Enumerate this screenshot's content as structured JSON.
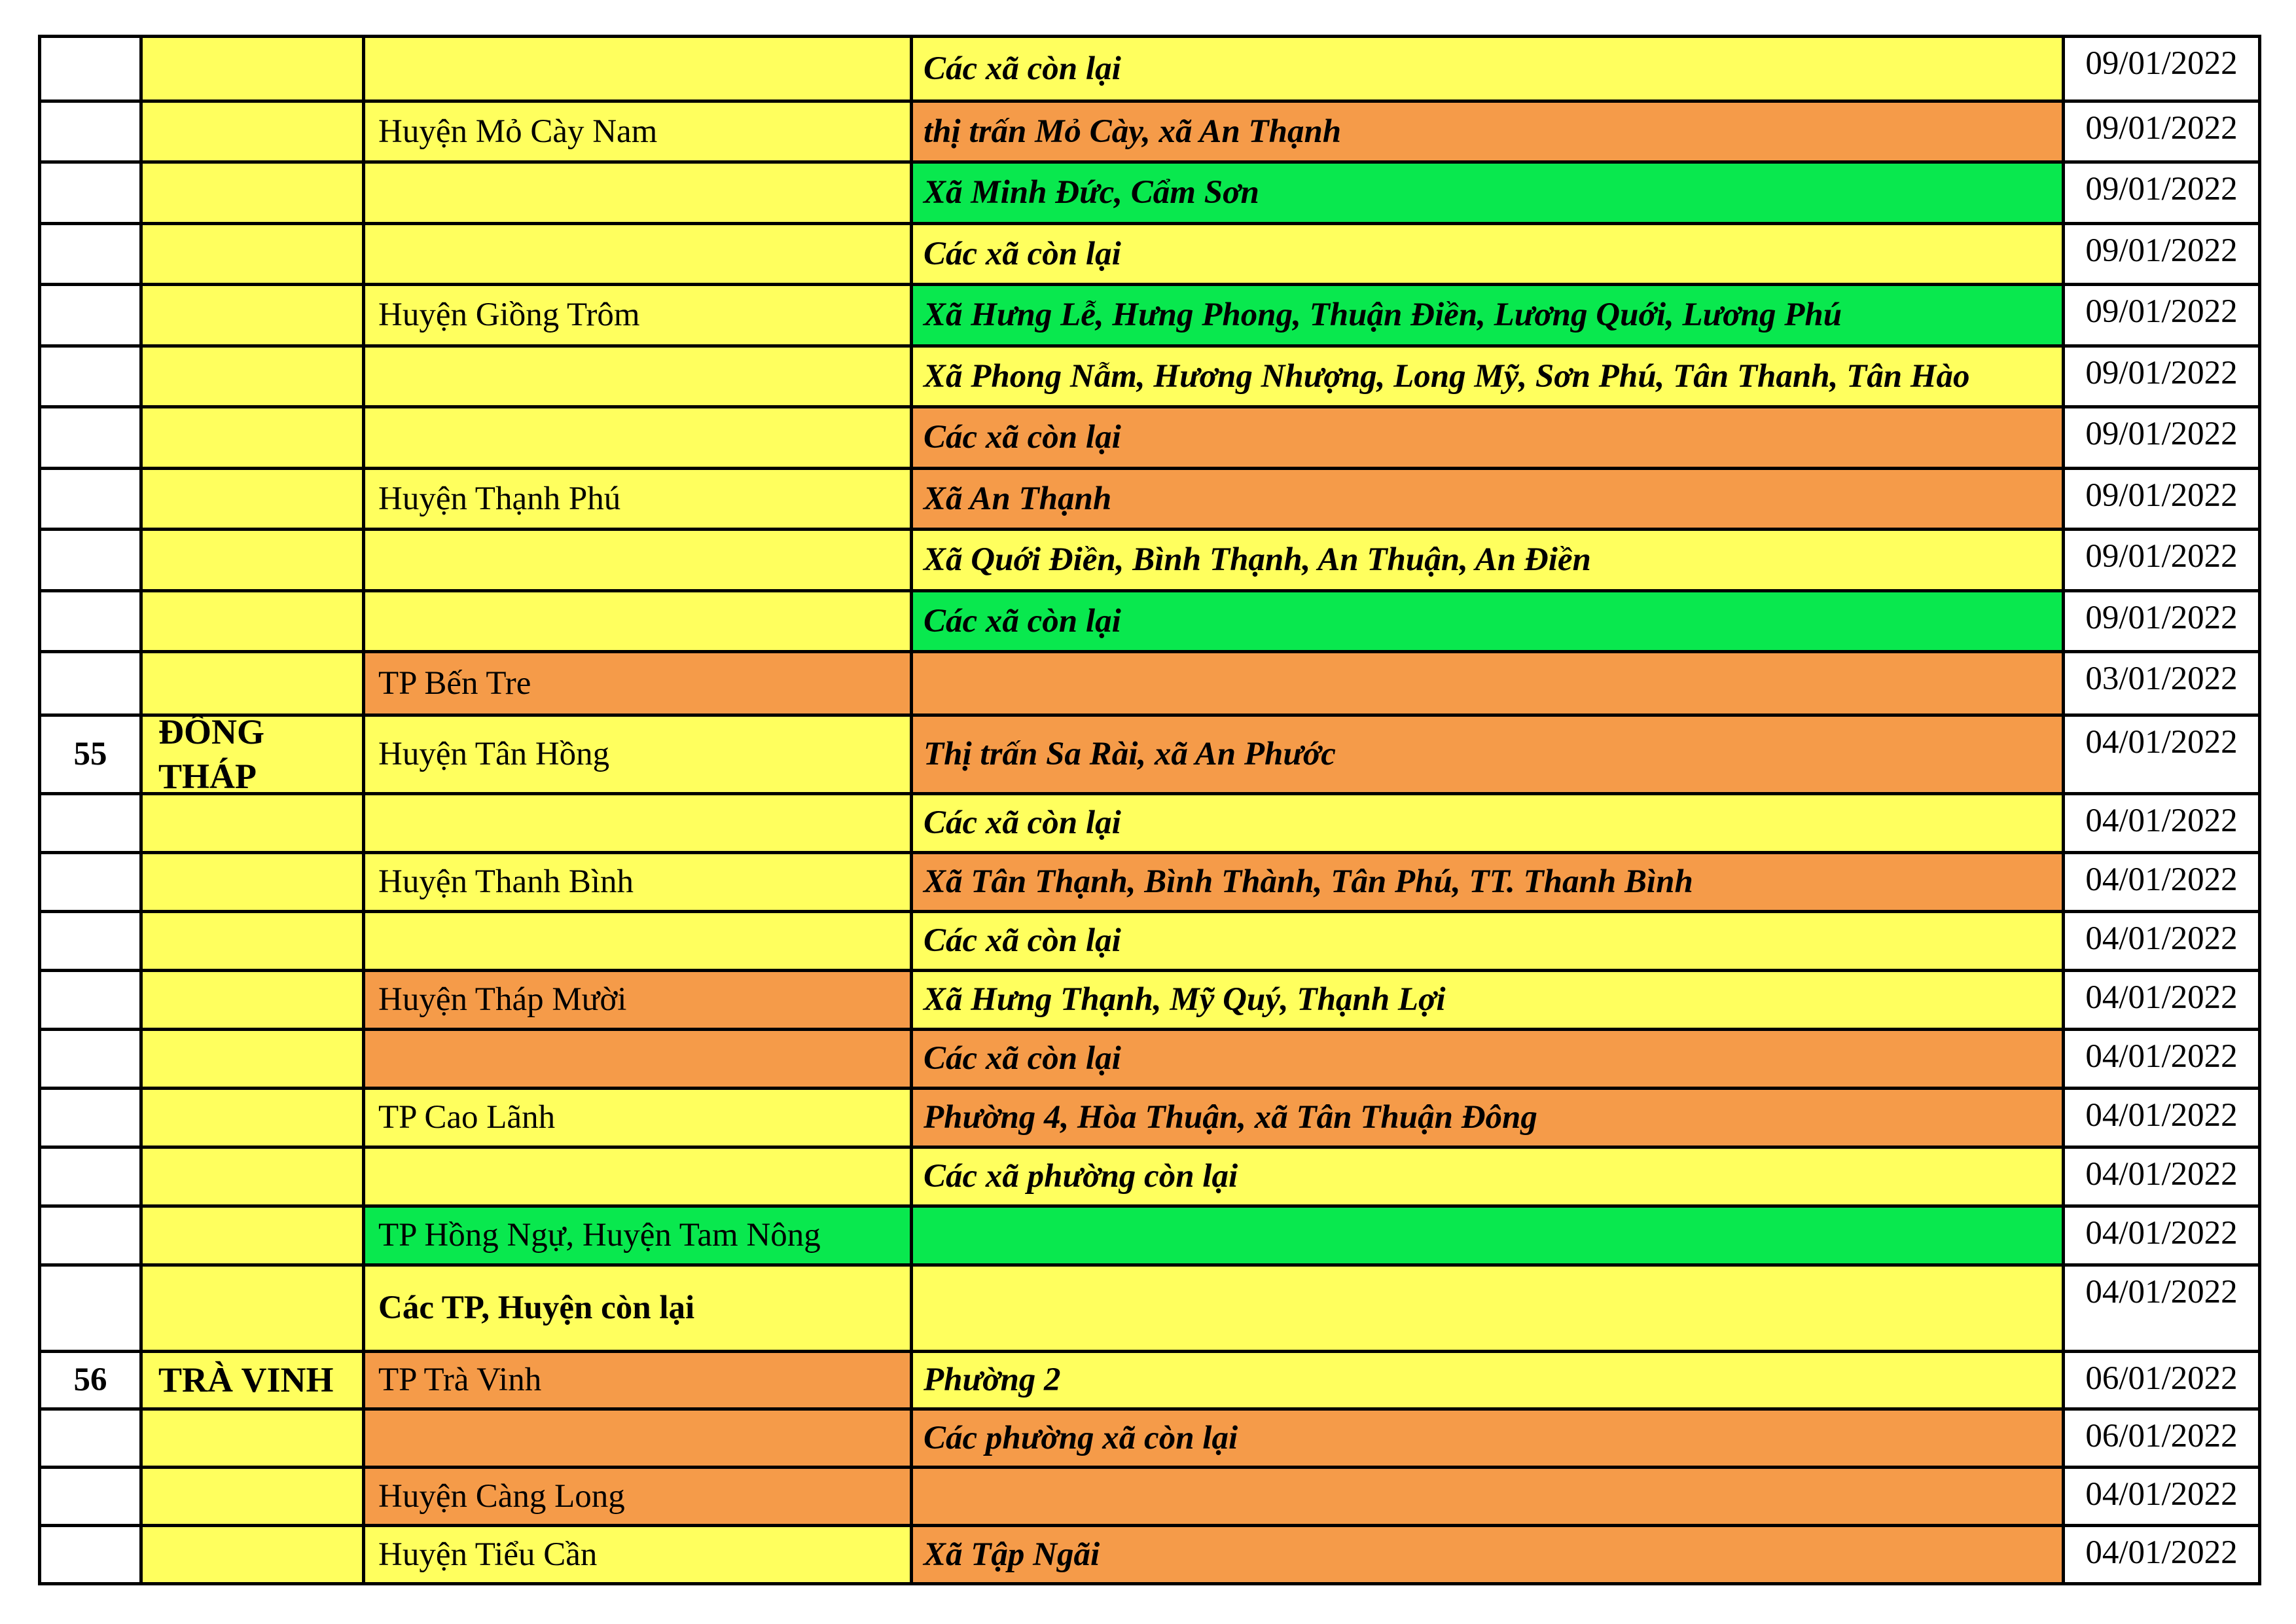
{
  "palette": {
    "yellow": "#FFFF5E",
    "orange": "#F59B49",
    "green": "#09E84E",
    "border": "#000000",
    "text": "#000000",
    "page_background": "#FFFFFF"
  },
  "table": {
    "rows": [
      {
        "num": "",
        "province": "",
        "district": "",
        "district_bg": "yellow",
        "district_bold": false,
        "commune": "Các xã còn lại",
        "commune_bg": "yellow",
        "date": "09/01/2022"
      },
      {
        "num": "",
        "province": "",
        "district": "Huyện Mỏ Cày Nam",
        "district_bg": "yellow",
        "district_bold": false,
        "commune": "thị trấn Mỏ Cày, xã An Thạnh",
        "commune_bg": "orange",
        "date": "09/01/2022"
      },
      {
        "num": "",
        "province": "",
        "district": "",
        "district_bg": "yellow",
        "district_bold": false,
        "commune": "Xã Minh Đức, Cẩm Sơn",
        "commune_bg": "green",
        "date": "09/01/2022"
      },
      {
        "num": "",
        "province": "",
        "district": "",
        "district_bg": "yellow",
        "district_bold": false,
        "commune": "Các xã còn lại",
        "commune_bg": "yellow",
        "date": "09/01/2022"
      },
      {
        "num": "",
        "province": "",
        "district": "Huyện Giồng Trôm",
        "district_bg": "yellow",
        "district_bold": false,
        "commune": "Xã Hưng Lễ, Hưng Phong, Thuận Điền, Lương Quới, Lương Phú",
        "commune_bg": "green",
        "date": "09/01/2022"
      },
      {
        "num": "",
        "province": "",
        "district": "",
        "district_bg": "yellow",
        "district_bold": false,
        "commune": "Xã Phong Nẫm, Hương Nhượng, Long Mỹ, Sơn Phú, Tân Thanh, Tân Hào",
        "commune_bg": "yellow",
        "date": "09/01/2022"
      },
      {
        "num": "",
        "province": "",
        "district": "",
        "district_bg": "yellow",
        "district_bold": false,
        "commune": "Các xã còn lại",
        "commune_bg": "orange",
        "date": "09/01/2022"
      },
      {
        "num": "",
        "province": "",
        "district": "Huyện Thạnh Phú",
        "district_bg": "yellow",
        "district_bold": false,
        "commune": "Xã An Thạnh",
        "commune_bg": "orange",
        "date": "09/01/2022"
      },
      {
        "num": "",
        "province": "",
        "district": "",
        "district_bg": "yellow",
        "district_bold": false,
        "commune": "Xã Quới Điền, Bình Thạnh, An Thuận, An Điền",
        "commune_bg": "yellow",
        "date": "09/01/2022"
      },
      {
        "num": "",
        "province": "",
        "district": "",
        "district_bg": "yellow",
        "district_bold": false,
        "commune": "Các xã còn lại",
        "commune_bg": "green",
        "date": "09/01/2022"
      },
      {
        "num": "",
        "province": "",
        "district": "TP Bến Tre",
        "district_bg": "orange",
        "district_bold": false,
        "commune": "",
        "commune_bg": "orange",
        "date": "03/01/2022"
      },
      {
        "num": "55",
        "province": "ĐỒNG THÁP",
        "district": "Huyện Tân Hồng",
        "district_bg": "yellow",
        "district_bold": false,
        "commune": "Thị trấn Sa Rài, xã An Phước",
        "commune_bg": "orange",
        "date": "04/01/2022"
      },
      {
        "num": "",
        "province": "",
        "district": "",
        "district_bg": "yellow",
        "district_bold": false,
        "commune": "Các xã còn lại",
        "commune_bg": "yellow",
        "date": "04/01/2022"
      },
      {
        "num": "",
        "province": "",
        "district": "Huyện Thanh Bình",
        "district_bg": "yellow",
        "district_bold": false,
        "commune": "Xã Tân Thạnh, Bình Thành, Tân Phú, TT. Thanh Bình",
        "commune_bg": "orange",
        "date": "04/01/2022"
      },
      {
        "num": "",
        "province": "",
        "district": "",
        "district_bg": "yellow",
        "district_bold": false,
        "commune": "Các xã còn lại",
        "commune_bg": "yellow",
        "date": "04/01/2022"
      },
      {
        "num": "",
        "province": "",
        "district": "Huyện Tháp Mười",
        "district_bg": "orange",
        "district_bold": false,
        "commune": "Xã Hưng Thạnh, Mỹ Quý, Thạnh Lợi",
        "commune_bg": "yellow",
        "date": "04/01/2022"
      },
      {
        "num": "",
        "province": "",
        "district": "",
        "district_bg": "orange",
        "district_bold": false,
        "commune": "Các xã còn lại",
        "commune_bg": "orange",
        "date": "04/01/2022"
      },
      {
        "num": "",
        "province": "",
        "district": "TP Cao Lãnh",
        "district_bg": "yellow",
        "district_bold": false,
        "commune": "Phường 4, Hòa Thuận, xã Tân Thuận Đông",
        "commune_bg": "orange",
        "date": "04/01/2022"
      },
      {
        "num": "",
        "province": "",
        "district": "",
        "district_bg": "yellow",
        "district_bold": false,
        "commune": "Các xã phường còn lại",
        "commune_bg": "yellow",
        "date": "04/01/2022"
      },
      {
        "num": "",
        "province": "",
        "district": "TP Hồng Ngự, Huyện Tam Nông",
        "district_bg": "green",
        "district_bold": false,
        "commune": "",
        "commune_bg": "green",
        "date": "04/01/2022"
      },
      {
        "num": "",
        "province": "",
        "district": "Các TP, Huyện còn lại",
        "district_bg": "yellow",
        "district_bold": true,
        "commune": "",
        "commune_bg": "yellow",
        "date": "04/01/2022"
      },
      {
        "num": "56",
        "province": "TRÀ VINH",
        "district": "TP Trà Vinh",
        "district_bg": "orange",
        "district_bold": false,
        "commune": "Phường 2",
        "commune_bg": "yellow",
        "date": "06/01/2022"
      },
      {
        "num": "",
        "province": "",
        "district": "",
        "district_bg": "orange",
        "district_bold": false,
        "commune": "Các phường xã còn lại",
        "commune_bg": "orange",
        "date": "06/01/2022"
      },
      {
        "num": "",
        "province": "",
        "district": "Huyện Càng Long",
        "district_bg": "orange",
        "district_bold": false,
        "commune": "",
        "commune_bg": "orange",
        "date": "04/01/2022"
      },
      {
        "num": "",
        "province": "",
        "district": "Huyện Tiểu Cần",
        "district_bg": "yellow",
        "district_bold": false,
        "commune": "Xã Tập Ngãi",
        "commune_bg": "orange",
        "date": "04/01/2022"
      }
    ]
  }
}
